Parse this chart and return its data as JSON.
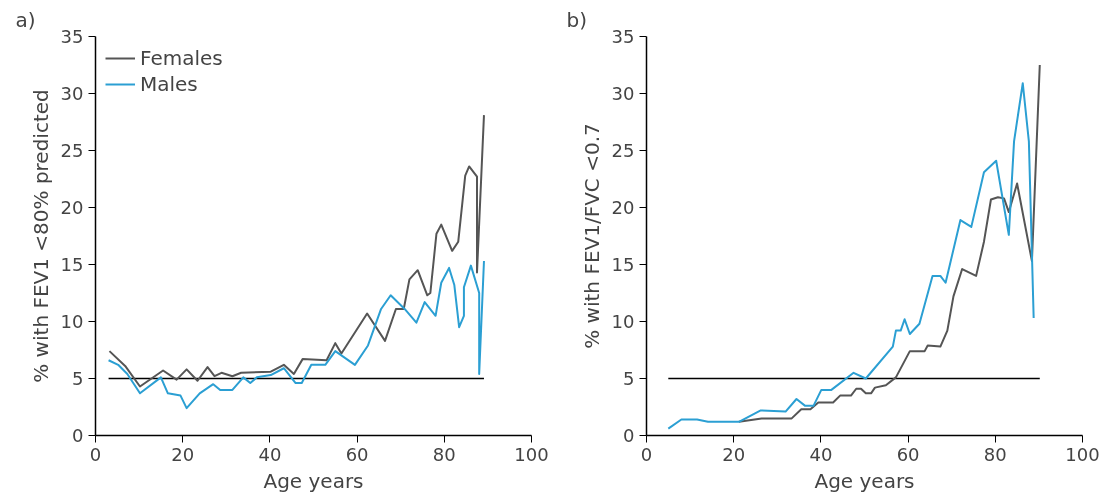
{
  "chart_data": [
    {
      "type": "line",
      "title": "a)",
      "xlabel": "Age years",
      "ylabel": "% with FEV1 <80% predicted",
      "xlim": [
        0,
        100
      ],
      "ylim": [
        0,
        35
      ],
      "xticks": [
        0,
        20,
        40,
        60,
        80,
        100
      ],
      "yticks": [
        0,
        5,
        10,
        15,
        20,
        25,
        30,
        35
      ],
      "grid": false,
      "legend": "top left",
      "ref_lines": [
        {
          "axis": "y",
          "value": 5,
          "color": "#000000"
        }
      ],
      "series": [
        {
          "name": "Females",
          "color": "#555555",
          "x": [
            3.2,
            6.8,
            10.2,
            15.5,
            18.6,
            20.9,
            23.4,
            25.7,
            27.3,
            28.9,
            31.4,
            33.4,
            40.2,
            43.2,
            45.5,
            47.5,
            53,
            55,
            56.4,
            62.3,
            66.4,
            68.9,
            70.7,
            72,
            73.9,
            76.1,
            76.8,
            78.2,
            79.3,
            81.8,
            83.2,
            84.8,
            85.7,
            87.5,
            87.5,
            89.1
          ],
          "values": [
            7.4,
            6.1,
            4.3,
            5.7,
            4.9,
            5.8,
            4.8,
            6.0,
            5.2,
            5.5,
            5.2,
            5.5,
            5.6,
            6.2,
            5.4,
            6.7,
            6.6,
            8.1,
            7.2,
            10.7,
            8.3,
            11.1,
            11.1,
            13.7,
            14.5,
            12.3,
            12.5,
            17.7,
            18.5,
            16.2,
            17.0,
            22.8,
            23.6,
            22.7,
            14.3,
            28.1
          ]
        },
        {
          "name": "Males",
          "color": "#2b9fd3",
          "x": [
            3,
            5.2,
            7.3,
            10.2,
            15,
            16.6,
            19.5,
            20.9,
            23.9,
            27,
            28.6,
            31.4,
            33.9,
            35.5,
            37,
            40.2,
            43.2,
            45.9,
            47.3,
            49.5,
            52.7,
            55,
            59.5,
            62.5,
            65.5,
            67.7,
            70.9,
            73.6,
            75.5,
            78,
            79.3,
            81.1,
            82.3,
            83.4,
            84.5,
            84.5,
            86.1,
            88,
            88,
            89.1
          ],
          "values": [
            6.6,
            6.2,
            5.4,
            3.7,
            5.1,
            3.7,
            3.5,
            2.4,
            3.7,
            4.5,
            4.0,
            4.0,
            5.1,
            4.6,
            5.1,
            5.3,
            5.9,
            4.6,
            4.6,
            6.2,
            6.2,
            7.4,
            6.2,
            7.9,
            11.1,
            12.3,
            11.1,
            9.9,
            11.7,
            10.5,
            13.4,
            14.7,
            13.2,
            9.5,
            10.5,
            13.0,
            14.9,
            12.5,
            5.4,
            15.3
          ]
        }
      ]
    },
    {
      "type": "line",
      "title": "b)",
      "xlabel": "Age years",
      "ylabel": "% with FEV1/FVC <0.7",
      "xlim": [
        0,
        100
      ],
      "ylim": [
        0,
        35
      ],
      "xticks": [
        0,
        20,
        40,
        60,
        80,
        100
      ],
      "yticks": [
        0,
        5,
        10,
        15,
        20,
        25,
        30,
        35
      ],
      "grid": false,
      "ref_lines": [
        {
          "axis": "y",
          "value": 5,
          "color": "#000000"
        }
      ],
      "series": [
        {
          "color": "#555555",
          "x": [
            21.2,
            26.4,
            33.3,
            35.5,
            37.6,
            39.4,
            42.8,
            44.4,
            46.9,
            48.1,
            49.2,
            50.3,
            51.5,
            52.4,
            54.9,
            57.2,
            60.4,
            63.8,
            64.5,
            67.4,
            69,
            70.4,
            72.4,
            75.6,
            77.4,
            79,
            80.6,
            82,
            83.1,
            85,
            88.4,
            90.2
          ],
          "values": [
            1.2,
            1.5,
            1.5,
            2.3,
            2.3,
            2.9,
            2.9,
            3.5,
            3.5,
            4.1,
            4.1,
            3.7,
            3.7,
            4.2,
            4.4,
            5.1,
            7.4,
            7.4,
            7.9,
            7.8,
            9.2,
            12.2,
            14.6,
            14.0,
            17.0,
            20.7,
            20.9,
            20.8,
            19.6,
            22.1,
            15.3,
            32.5
          ]
        },
        {
          "color": "#2b9fd3",
          "x": [
            5,
            8,
            11.6,
            14.1,
            21.2,
            26.2,
            31.9,
            34.4,
            36.4,
            38.3,
            40.1,
            42.4,
            47.5,
            50.3,
            56.5,
            57.2,
            58.3,
            59.2,
            60.4,
            62.6,
            65.6,
            67.4,
            68.6,
            72,
            74.5,
            77.4,
            80.2,
            83.1,
            84.3,
            86.3,
            87.7,
            88.8
          ],
          "values": [
            0.6,
            1.4,
            1.4,
            1.2,
            1.2,
            2.2,
            2.1,
            3.2,
            2.6,
            2.6,
            4.0,
            4.0,
            5.5,
            5.0,
            7.8,
            9.2,
            9.2,
            10.2,
            8.9,
            9.8,
            14.0,
            14.0,
            13.4,
            18.9,
            18.3,
            23.1,
            24.1,
            17.6,
            25.8,
            30.9,
            25.8,
            10.3
          ]
        }
      ]
    }
  ]
}
